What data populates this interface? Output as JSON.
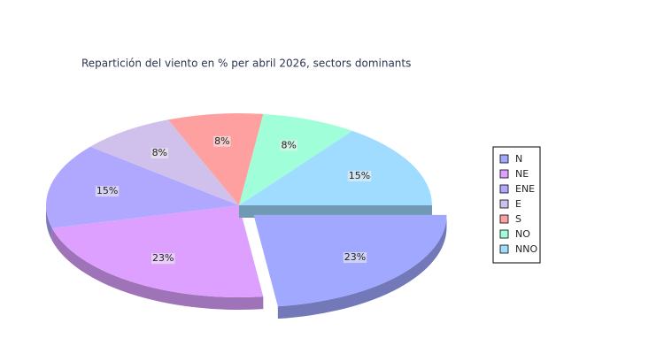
{
  "chart_data": {
    "type": "pie",
    "title": "Repartición del viento en % per abril 2026, sectors dominants",
    "categories": [
      "N",
      "NE",
      "ENE",
      "E",
      "S",
      "NO",
      "NNO"
    ],
    "values": [
      23,
      23,
      15,
      8,
      8,
      8,
      15
    ],
    "value_labels": [
      "23%",
      "23%",
      "15%",
      "8%",
      "8%",
      "8%",
      "15%"
    ],
    "colors": [
      "#a0a8ff",
      "#dda0ff",
      "#b0a8ff",
      "#d0c0ec",
      "#ffa0a0",
      "#a0ffd8",
      "#a0dcff"
    ],
    "legend": "right"
  }
}
